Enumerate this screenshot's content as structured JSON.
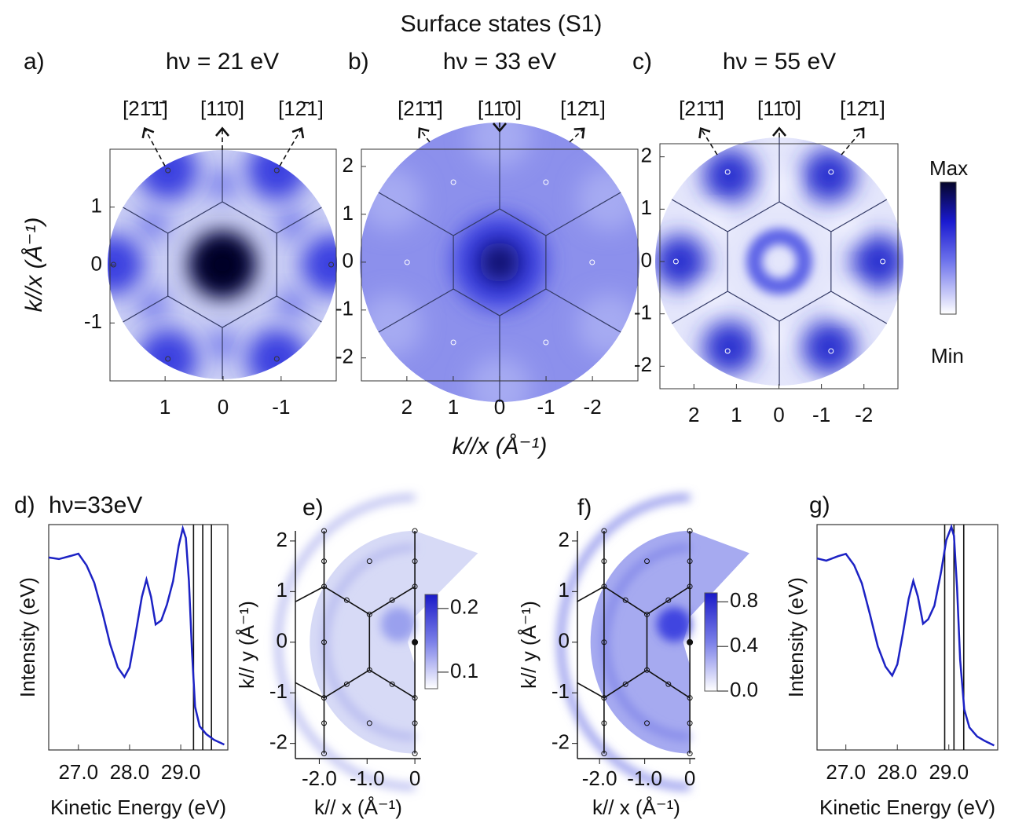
{
  "title": "Surface states (S1)",
  "colorbar": {
    "max": "Max",
    "min": "Min"
  },
  "chart_data": [
    {
      "type": "map",
      "label": "a)",
      "title": "hν = 21 eV",
      "directions": [
        "[21̄1̄]",
        "[11̄0]",
        "[12̄1]"
      ],
      "ylabel": "k//x (Å⁻¹)",
      "xlim": [
        1.95,
        -1.95
      ],
      "ylim": [
        -2.0,
        2.0
      ],
      "xticks": [
        1,
        0,
        -1
      ],
      "yticks": [
        1,
        0,
        -1
      ]
    },
    {
      "type": "map",
      "label": "b)",
      "title": "hν = 33 eV",
      "directions": [
        "[21̄1̄]",
        "[11̄0]",
        "[12̄1]"
      ],
      "xlabel": "k//x (Å⁻¹)",
      "xlim": [
        2.98,
        -2.98
      ],
      "ylim": [
        -2.48,
        2.36
      ],
      "xticks": [
        2,
        1,
        0,
        -1,
        -2
      ],
      "yticks": [
        2,
        1,
        0,
        -1,
        -2
      ]
    },
    {
      "type": "map",
      "label": "c)",
      "title": "hν = 55 eV",
      "directions": [
        "[21̄1̄]",
        "[11̄0]",
        "[12̄1]"
      ],
      "xlim": [
        2.8,
        -2.8
      ],
      "ylim": [
        -2.43,
        2.25
      ],
      "xticks": [
        2,
        1,
        0,
        -1,
        -2
      ],
      "yticks": [
        2,
        1,
        0,
        -1,
        -2
      ]
    },
    {
      "type": "line",
      "label": "d)",
      "title": "hν=33eV",
      "xlabel": "Kinetic Energy (eV)",
      "ylabel": "Intensity (eV)",
      "color": "#1c22c4",
      "xlim": [
        26.42,
        29.92
      ],
      "ylim": [
        0,
        1
      ],
      "xticks": [
        {
          "value": 27,
          "label": "27.0"
        },
        {
          "value": 28,
          "label": "28.0"
        },
        {
          "value": 29,
          "label": "29.0"
        }
      ],
      "vlines": [
        29.25,
        29.43,
        29.6
      ],
      "x": [
        26.42,
        26.62,
        26.85,
        27.0,
        27.16,
        27.31,
        27.47,
        27.62,
        27.77,
        27.9,
        28.0,
        28.11,
        28.24,
        28.33,
        28.42,
        28.51,
        28.62,
        28.73,
        28.85,
        28.96,
        29.04,
        29.1,
        29.16,
        29.22,
        29.28,
        29.37,
        29.5,
        29.65,
        29.85
      ],
      "values": [
        0.854,
        0.847,
        0.861,
        0.871,
        0.819,
        0.742,
        0.61,
        0.47,
        0.366,
        0.324,
        0.366,
        0.505,
        0.679,
        0.756,
        0.679,
        0.557,
        0.575,
        0.645,
        0.749,
        0.906,
        0.983,
        0.941,
        0.749,
        0.436,
        0.192,
        0.105,
        0.07,
        0.045,
        0.024
      ]
    },
    {
      "type": "map",
      "label": "e)",
      "xlabel": "k// x (Å⁻¹)",
      "ylabel": "k// y (Å⁻¹)",
      "xlim": [
        -2.5,
        0.13
      ],
      "ylim": [
        -2.3,
        2.2
      ],
      "xticks": [
        {
          "value": -2,
          "label": "-2.0"
        },
        {
          "value": -1,
          "label": "-1.0"
        },
        0
      ],
      "yticks": [
        -2,
        -1,
        0,
        1,
        2
      ],
      "clim": [
        0.074,
        0.222
      ],
      "cticks": [
        0.1,
        0.2
      ]
    },
    {
      "type": "map",
      "label": "f)",
      "xlabel": "k// x (Å⁻¹)",
      "ylabel": "k// y (Å⁻¹)",
      "xlim": [
        -2.49,
        0.12
      ],
      "ylim": [
        -2.3,
        2.2
      ],
      "xticks": [
        {
          "value": -2,
          "label": "-2.0"
        },
        {
          "value": -1,
          "label": "-1.0"
        },
        0
      ],
      "yticks": [
        -2,
        -1,
        0,
        1,
        2
      ],
      "clim": [
        0,
        0.88
      ],
      "cticks": [
        {
          "value": 0,
          "label": "0.0"
        },
        0.4,
        0.8
      ]
    },
    {
      "type": "line",
      "label": "g)",
      "xlabel": "Kinetic Energy (eV)",
      "ylabel": "Intensity (eV)",
      "color": "#1c22c4",
      "xlim": [
        26.44,
        29.95
      ],
      "ylim": [
        0,
        1
      ],
      "xticks": [
        {
          "value": 27,
          "label": "27.0"
        },
        {
          "value": 28,
          "label": "28.0"
        },
        {
          "value": 29,
          "label": "29.0"
        }
      ],
      "vlines": [
        28.92,
        29.1,
        29.29
      ],
      "x": [
        26.44,
        26.62,
        26.85,
        27.0,
        27.16,
        27.31,
        27.47,
        27.62,
        27.77,
        27.9,
        28.0,
        28.11,
        28.22,
        28.31,
        28.4,
        28.5,
        28.6,
        28.72,
        28.85,
        28.95,
        29.05,
        29.1,
        29.16,
        29.22,
        29.3,
        29.4,
        29.55,
        29.7,
        29.88
      ],
      "values": [
        0.85,
        0.84,
        0.86,
        0.87,
        0.82,
        0.74,
        0.6,
        0.46,
        0.37,
        0.33,
        0.38,
        0.52,
        0.67,
        0.75,
        0.68,
        0.56,
        0.58,
        0.64,
        0.79,
        0.93,
        0.99,
        0.95,
        0.72,
        0.4,
        0.18,
        0.1,
        0.06,
        0.04,
        0.02
      ]
    }
  ]
}
